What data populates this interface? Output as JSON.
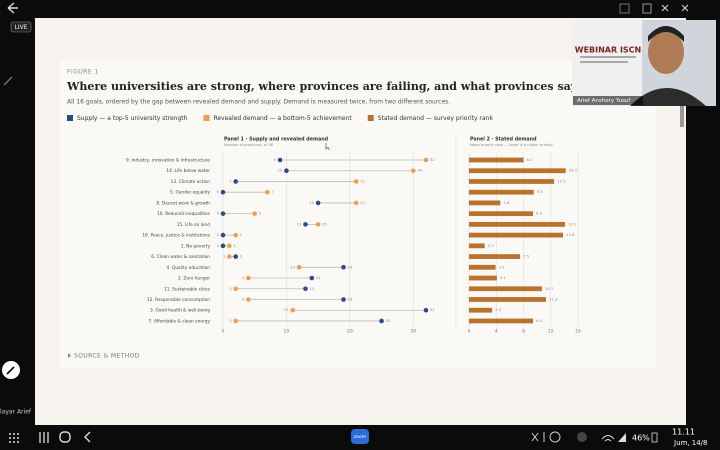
{
  "screen": {
    "live_badge": "LIVE",
    "presenter": "Arief Anshory Yusuf",
    "webinar_title": "WEBINAR ISCN",
    "screen_share_label": "layar Arief",
    "zoom_button": "zoom",
    "time": "11.11",
    "date": "Jum, 14/8",
    "battery": "46%"
  },
  "chart_data": {
    "type": "dumbbell",
    "figure_label": "FIGURE 1",
    "title": "Where universities are strong, where provinces are failing, and what provinces say they want",
    "subtitle": "All 16 goals, ordered by the gap between revealed demand and supply. Demand is measured twice, from two different sources.",
    "categories": [
      "9. Industry, innovation & infrastructure",
      "14. Life below water",
      "13. Climate action",
      "5. Gender equality",
      "8. Decent work & growth",
      "10. Reduced inequalities",
      "15. Life on land",
      "16. Peace, justice & institutions",
      "1. No poverty",
      "6. Clean water & sanitation",
      "4. Quality education",
      "2. Zero hunger",
      "11. Sustainable cities",
      "12. Responsible consumption",
      "3. Good health & well-being",
      "7. Affordable & clean energy"
    ],
    "series": [
      {
        "name": "Supply — a top-5 university strength",
        "color": "#2b4a8e",
        "values": [
          9,
          10,
          2,
          0,
          15,
          0,
          13,
          0,
          0,
          2,
          19,
          14,
          13,
          19,
          32,
          25
        ]
      },
      {
        "name": "Revealed demand — a bottom-5 achievement",
        "color": "#f0a04b",
        "values": [
          32,
          30,
          21,
          7,
          21,
          5,
          15,
          2,
          1,
          1,
          12,
          4,
          2,
          4,
          11,
          2
        ]
      },
      {
        "name": "Stated demand — survey priority rank",
        "color": "#b8742e",
        "axis": "x2",
        "values": [
          8.0,
          14.2,
          12.5,
          9.5,
          4.6,
          9.4,
          14.1,
          13.8,
          2.3,
          7.5,
          3.9,
          4.1,
          10.7,
          11.3,
          3.4,
          9.4
        ],
        "value_labels": [
          "8.0",
          "14.2",
          "12.5",
          "9.5",
          "4.6",
          "9.4",
          "14.1",
          "13.8",
          "2.3",
          "7.5",
          "3.9",
          "4.1",
          "10.7",
          "11.3",
          "3.4",
          "9.4"
        ]
      }
    ],
    "panel1_title": "Panel 1 · Supply and revealed demand",
    "panel1_subtitle": "Number of provinces, of 38",
    "xlim": [
      0,
      35
    ],
    "xticks": [
      0,
      10,
      20,
      30
    ],
    "panel2_title": "Panel 2 · Stated demand",
    "panel2_subtitle": "Mean priority rank — lower is a higher priority",
    "x2lim": [
      0,
      16
    ],
    "x2ticks": [
      0,
      4,
      8,
      12,
      16
    ],
    "grid": true,
    "footer": "SOURCE & METHOD"
  }
}
